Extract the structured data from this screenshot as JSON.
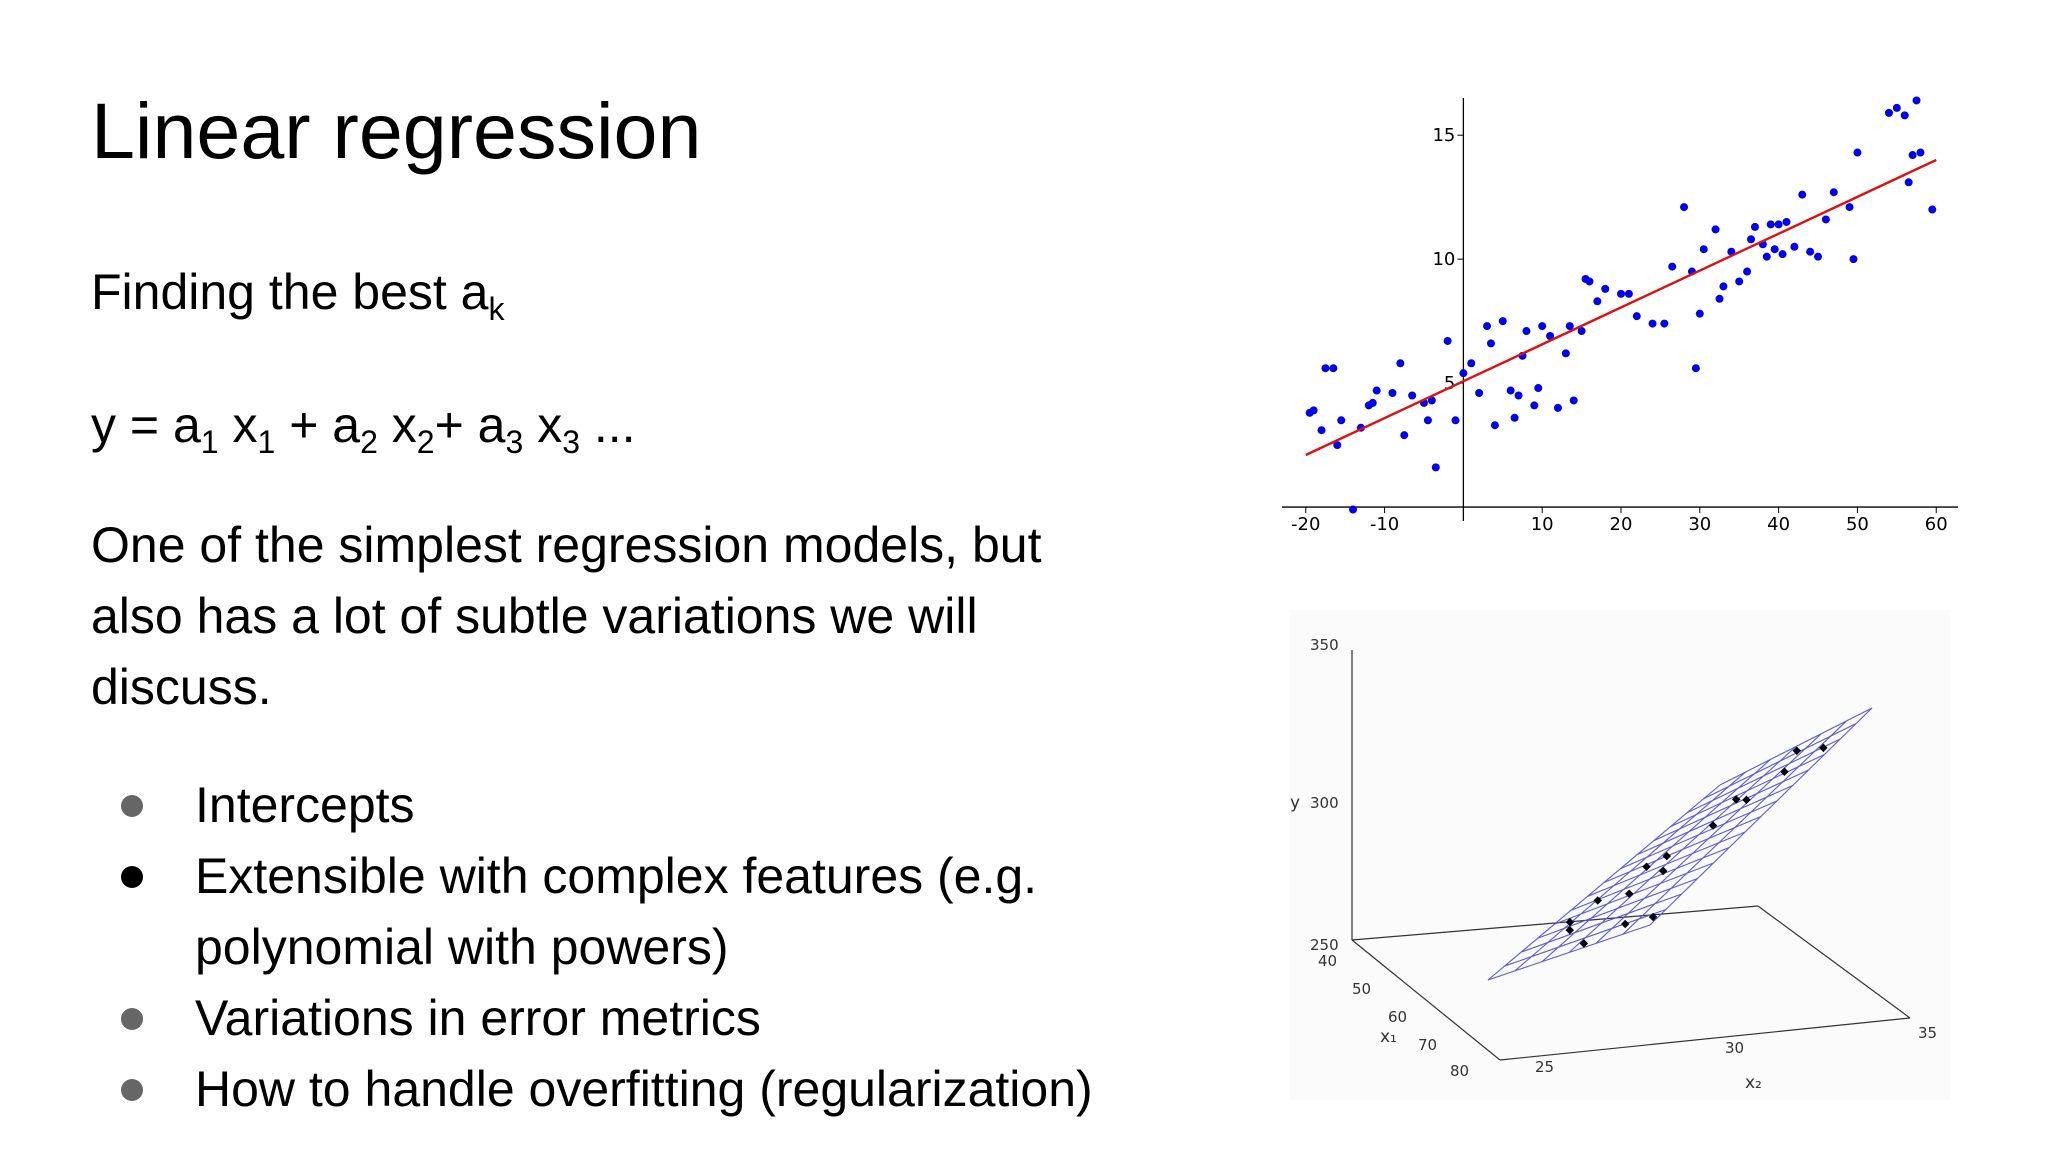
{
  "slide": {
    "title": "Linear regression",
    "line1": {
      "text": "Finding the best a",
      "sub": "k"
    },
    "formula": {
      "y": "y = a",
      "s1": "1",
      "x1": " x",
      "s2": "1",
      "plus1": " + a",
      "s3": "2",
      "x2": " x",
      "s4": "2",
      "plus2": "+ a",
      "s5": "3",
      "x3": " x",
      "s6": "3",
      "tail": " ..."
    },
    "paragraph": "One of the simplest regression models, but also has a lot of subtle variations we will discuss.",
    "bullets": [
      {
        "label": "Intercepts",
        "color": "#666666"
      },
      {
        "label": "Extensible with complex features (e.g. polynomial with powers)",
        "color": "#000000"
      },
      {
        "label": "Variations in error metrics",
        "color": "#666666"
      },
      {
        "label": "How to handle overfitting (regularization)",
        "color": "#666666"
      }
    ]
  },
  "chart_data": [
    {
      "type": "scatter",
      "title": "",
      "xlim": [
        -22,
        62
      ],
      "ylim": [
        -0.2,
        16.5
      ],
      "xticks": [
        -20,
        -10,
        10,
        20,
        30,
        40,
        50,
        60
      ],
      "yticks": [
        5,
        10,
        15
      ],
      "xtick_labels": [
        "-20",
        "-10",
        "10",
        "20",
        "30",
        "40",
        "50",
        "60"
      ],
      "ytick_labels": [
        "5",
        "10",
        "15"
      ],
      "point_color": "#0000ee",
      "line_color": "#dd1111",
      "fit_line": {
        "x": [
          -20,
          60
        ],
        "y": [
          2.1,
          14.0
        ]
      },
      "points": [
        [
          -19.5,
          3.8
        ],
        [
          -19,
          3.9
        ],
        [
          -18,
          3.1
        ],
        [
          -17.5,
          5.6
        ],
        [
          -16.5,
          5.6
        ],
        [
          -16,
          2.5
        ],
        [
          -15.5,
          3.5
        ],
        [
          -14,
          -0.1
        ],
        [
          -13,
          3.2
        ],
        [
          -12,
          4.1
        ],
        [
          -11.5,
          4.2
        ],
        [
          -11,
          4.7
        ],
        [
          -9,
          4.6
        ],
        [
          -8,
          5.8
        ],
        [
          -7.5,
          2.9
        ],
        [
          -6.5,
          4.5
        ],
        [
          -5,
          4.2
        ],
        [
          -4.5,
          3.5
        ],
        [
          -4,
          4.3
        ],
        [
          -3.5,
          1.6
        ],
        [
          -2,
          6.7
        ],
        [
          -1,
          3.5
        ],
        [
          0,
          5.4
        ],
        [
          1,
          5.8
        ],
        [
          2,
          4.6
        ],
        [
          3,
          7.3
        ],
        [
          3.5,
          6.6
        ],
        [
          4,
          3.3
        ],
        [
          5,
          7.5
        ],
        [
          6,
          4.7
        ],
        [
          6.5,
          3.6
        ],
        [
          7,
          4.5
        ],
        [
          7.5,
          6.1
        ],
        [
          8,
          7.1
        ],
        [
          9,
          4.1
        ],
        [
          9.5,
          4.8
        ],
        [
          10,
          7.3
        ],
        [
          11,
          6.9
        ],
        [
          12,
          4.0
        ],
        [
          13,
          6.2
        ],
        [
          13.5,
          7.3
        ],
        [
          14,
          4.3
        ],
        [
          15,
          7.1
        ],
        [
          15.5,
          9.2
        ],
        [
          16,
          9.1
        ],
        [
          17,
          8.3
        ],
        [
          18,
          8.8
        ],
        [
          20,
          8.6
        ],
        [
          21,
          8.6
        ],
        [
          22,
          7.7
        ],
        [
          24,
          7.4
        ],
        [
          25.5,
          7.4
        ],
        [
          26.5,
          9.7
        ],
        [
          28,
          12.1
        ],
        [
          29,
          9.5
        ],
        [
          29.5,
          5.6
        ],
        [
          30,
          7.8
        ],
        [
          30.5,
          10.4
        ],
        [
          32,
          11.2
        ],
        [
          32.5,
          8.4
        ],
        [
          33,
          8.9
        ],
        [
          34,
          10.3
        ],
        [
          35,
          9.1
        ],
        [
          36,
          9.5
        ],
        [
          36.5,
          10.8
        ],
        [
          37,
          11.3
        ],
        [
          38,
          10.6
        ],
        [
          38.5,
          10.1
        ],
        [
          39,
          11.4
        ],
        [
          39.5,
          10.4
        ],
        [
          40,
          11.4
        ],
        [
          40.5,
          10.2
        ],
        [
          41,
          11.5
        ],
        [
          42,
          10.5
        ],
        [
          43,
          12.6
        ],
        [
          44,
          10.3
        ],
        [
          45,
          10.1
        ],
        [
          46,
          11.6
        ],
        [
          47,
          12.7
        ],
        [
          49,
          12.1
        ],
        [
          49.5,
          10.0
        ],
        [
          50,
          14.3
        ],
        [
          54,
          15.9
        ],
        [
          55,
          16.1
        ],
        [
          56,
          15.8
        ],
        [
          57,
          14.2
        ],
        [
          57.5,
          16.4
        ],
        [
          58,
          14.3
        ],
        [
          59.5,
          12.0
        ],
        [
          56.5,
          13.1
        ]
      ]
    },
    {
      "type": "scatter",
      "title": "",
      "projection": "3d",
      "zlabel": "y",
      "xlabel": "x₁",
      "ylabel": "x₂",
      "z_ticks": [
        "350",
        "300",
        "250"
      ],
      "x1_ticks": [
        "40",
        "50",
        "60",
        "70",
        "80"
      ],
      "x2_ticks": [
        "25",
        "30",
        "35"
      ],
      "plane_color": "#5a5ae0",
      "points_color": "#000000"
    }
  ]
}
